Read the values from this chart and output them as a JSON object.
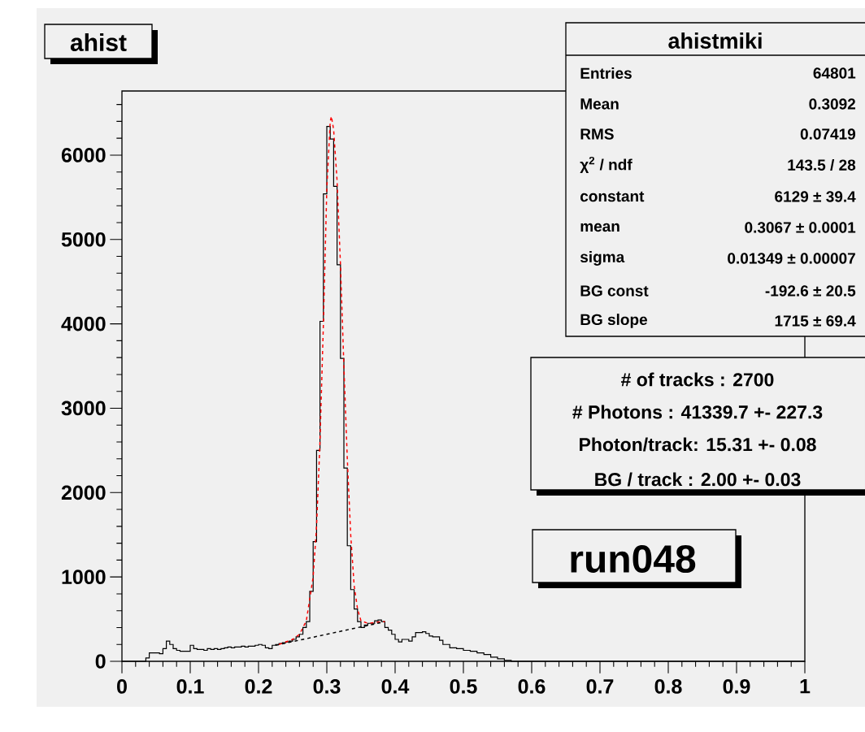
{
  "chart_data": {
    "type": "histogram",
    "title": "ahist",
    "color": "#000000",
    "bins": [
      0,
      0.005,
      0.01,
      0.015,
      0.02,
      0.025,
      0.03,
      0.035,
      0.04,
      0.045,
      0.05,
      0.055,
      0.06,
      0.065,
      0.07,
      0.075,
      0.08,
      0.085,
      0.09,
      0.095,
      0.1,
      0.105,
      0.11,
      0.115,
      0.12,
      0.125,
      0.13,
      0.135,
      0.14,
      0.145,
      0.15,
      0.155,
      0.16,
      0.165,
      0.17,
      0.175,
      0.18,
      0.185,
      0.19,
      0.195,
      0.2,
      0.205,
      0.21,
      0.215,
      0.22,
      0.225,
      0.23,
      0.235,
      0.24,
      0.245,
      0.25,
      0.255,
      0.26,
      0.265,
      0.27,
      0.275,
      0.28,
      0.285,
      0.29,
      0.295,
      0.3,
      0.305,
      0.31,
      0.315,
      0.32,
      0.325,
      0.33,
      0.335,
      0.34,
      0.345,
      0.35,
      0.355,
      0.36,
      0.365,
      0.37,
      0.375,
      0.38,
      0.385,
      0.39,
      0.395,
      0.4,
      0.405,
      0.41,
      0.415,
      0.42,
      0.425,
      0.43,
      0.435,
      0.44,
      0.445,
      0.45,
      0.455,
      0.46,
      0.465,
      0.47,
      0.475,
      0.48,
      0.485,
      0.49,
      0.495,
      0.5,
      0.505,
      0.51,
      0.515,
      0.52,
      0.525,
      0.53,
      0.535,
      0.54,
      0.545,
      0.55,
      0.555,
      0.56,
      0.565,
      0.57,
      0.575,
      0.58,
      0.585,
      0.59,
      0.595,
      0.6,
      0.605,
      0.61,
      0.615,
      0.62,
      0.625,
      0.63,
      0.635,
      0.64,
      0.645,
      0.65,
      0.655,
      0.66,
      0.665,
      0.67,
      0.675,
      0.68,
      0.685,
      0.69,
      0.695,
      0.7,
      0.705,
      0.71,
      0.715,
      0.72,
      0.725,
      0.73,
      0.735,
      0.74,
      0.745,
      0.75,
      0.755,
      0.76,
      0.765,
      0.77,
      0.775,
      0.78,
      0.785,
      0.79,
      0.795,
      0.8,
      0.805,
      0.81,
      0.815,
      0.82,
      0.825,
      0.83,
      0.835,
      0.84,
      0.845,
      0.85,
      0.855,
      0.86,
      0.865,
      0.87,
      0.875,
      0.88,
      0.885,
      0.89,
      0.895,
      0.9,
      0.905,
      0.91,
      0.915,
      0.92,
      0.925,
      0.93,
      0.935,
      0.94,
      0.945,
      0.95,
      0.955,
      0.96,
      0.965,
      0.97,
      0.975,
      0.98,
      0.985,
      0.99,
      0.995,
      1
    ],
    "values": [
      0,
      0,
      0,
      0,
      0,
      0,
      0,
      40,
      100,
      100,
      100,
      90,
      150,
      240,
      200,
      150,
      130,
      120,
      120,
      120,
      190,
      150,
      140,
      140,
      130,
      150,
      140,
      150,
      140,
      150,
      160,
      170,
      160,
      170,
      170,
      180,
      170,
      180,
      180,
      190,
      200,
      190,
      160,
      150,
      190,
      200,
      210,
      220,
      230,
      240,
      260,
      290,
      320,
      400,
      470,
      830,
      1420,
      2500,
      4030,
      5540,
      6340,
      6190,
      5630,
      4700,
      3590,
      2290,
      1370,
      850,
      620,
      470,
      400,
      430,
      450,
      450,
      480,
      490,
      470,
      400,
      370,
      320,
      260,
      230,
      260,
      260,
      240,
      290,
      340,
      340,
      350,
      330,
      300,
      290,
      290,
      250,
      200,
      200,
      160,
      160,
      150,
      150,
      130,
      130,
      120,
      120,
      100,
      100,
      80,
      80,
      50,
      50,
      30,
      30,
      10,
      10,
      0,
      0,
      0,
      0,
      0,
      0,
      0,
      0,
      0,
      0,
      0,
      0,
      0,
      0,
      0,
      0,
      0,
      0,
      0,
      0,
      0,
      0,
      0,
      0,
      0,
      0,
      0,
      0,
      0,
      0,
      0,
      0,
      0,
      0,
      0,
      0,
      0,
      0,
      0,
      0,
      0,
      0,
      0,
      0,
      0,
      0,
      0,
      0,
      0,
      0,
      0,
      0,
      0,
      0,
      0,
      0,
      0,
      0,
      0,
      0,
      0,
      0,
      0,
      0,
      0,
      0,
      0,
      0,
      0,
      0,
      0,
      0,
      0,
      0,
      0,
      0,
      0,
      0,
      0,
      0,
      0,
      0,
      0,
      0,
      0,
      0
    ],
    "series": [
      {
        "type": "line",
        "color": "#ff0000",
        "line_style": "dashed",
        "x": [
          0.23,
          0.25,
          0.26,
          0.27,
          0.28,
          0.285,
          0.29,
          0.295,
          0.3,
          0.305,
          0.3067,
          0.31,
          0.315,
          0.32,
          0.325,
          0.33,
          0.335,
          0.34,
          0.345,
          0.35,
          0.36,
          0.37,
          0.38,
          0.385
        ],
        "values": [
          200,
          260,
          320,
          480,
          1000,
          1600,
          2600,
          4000,
          5600,
          6400,
          6460,
          6300,
          5700,
          4700,
          3500,
          2400,
          1500,
          900,
          620,
          480,
          450,
          460,
          470,
          470
        ]
      },
      {
        "type": "line",
        "color": "#000000",
        "line_style": "dashed",
        "x": [
          0.225,
          0.38
        ],
        "values": [
          190,
          460
        ]
      }
    ],
    "xlim": [
      0,
      1
    ],
    "ylim": [
      0,
      6760
    ],
    "xticks": [
      0,
      {
        "value": 0.02,
        "label": null
      },
      {
        "value": 0.04,
        "label": null
      },
      {
        "value": 0.06,
        "label": null
      },
      {
        "value": 0.08,
        "label": null
      },
      0.1,
      {
        "value": 0.12,
        "label": null
      },
      {
        "value": 0.14,
        "label": null
      },
      {
        "value": 0.16,
        "label": null
      },
      {
        "value": 0.18,
        "label": null
      },
      0.2,
      {
        "value": 0.22,
        "label": null
      },
      {
        "value": 0.24,
        "label": null
      },
      {
        "value": 0.26,
        "label": null
      },
      {
        "value": 0.28,
        "label": null
      },
      0.3,
      {
        "value": 0.32,
        "label": null
      },
      {
        "value": 0.34,
        "label": null
      },
      {
        "value": 0.36,
        "label": null
      },
      {
        "value": 0.38,
        "label": null
      },
      0.4,
      {
        "value": 0.42,
        "label": null
      },
      {
        "value": 0.44,
        "label": null
      },
      {
        "value": 0.46,
        "label": null
      },
      {
        "value": 0.48,
        "label": null
      },
      0.5,
      {
        "value": 0.52,
        "label": null
      },
      {
        "value": 0.54,
        "label": null
      },
      {
        "value": 0.56,
        "label": null
      },
      {
        "value": 0.58,
        "label": null
      },
      0.6,
      {
        "value": 0.62,
        "label": null
      },
      {
        "value": 0.64,
        "label": null
      },
      {
        "value": 0.66,
        "label": null
      },
      {
        "value": 0.68,
        "label": null
      },
      0.7,
      {
        "value": 0.72,
        "label": null
      },
      {
        "value": 0.74,
        "label": null
      },
      {
        "value": 0.76,
        "label": null
      },
      {
        "value": 0.78,
        "label": null
      },
      0.8,
      {
        "value": 0.82,
        "label": null
      },
      {
        "value": 0.84,
        "label": null
      },
      {
        "value": 0.86,
        "label": null
      },
      {
        "value": 0.88,
        "label": null
      },
      0.9,
      {
        "value": 0.92,
        "label": null
      },
      {
        "value": 0.94,
        "label": null
      },
      {
        "value": 0.96,
        "label": null
      },
      {
        "value": 0.98,
        "label": null
      },
      1
    ],
    "yticks": [
      0,
      {
        "value": 200,
        "label": null
      },
      {
        "value": 400,
        "label": null
      },
      {
        "value": 600,
        "label": null
      },
      {
        "value": 800,
        "label": null
      },
      1000,
      {
        "value": 1200,
        "label": null
      },
      {
        "value": 1400,
        "label": null
      },
      {
        "value": 1600,
        "label": null
      },
      {
        "value": 1800,
        "label": null
      },
      2000,
      {
        "value": 2200,
        "label": null
      },
      {
        "value": 2400,
        "label": null
      },
      {
        "value": 2600,
        "label": null
      },
      {
        "value": 2800,
        "label": null
      },
      3000,
      {
        "value": 3200,
        "label": null
      },
      {
        "value": 3400,
        "label": null
      },
      {
        "value": 3600,
        "label": null
      },
      {
        "value": 3800,
        "label": null
      },
      4000,
      {
        "value": 4200,
        "label": null
      },
      {
        "value": 4400,
        "label": null
      },
      {
        "value": 4600,
        "label": null
      },
      {
        "value": 4800,
        "label": null
      },
      5000,
      {
        "value": 5200,
        "label": null
      },
      {
        "value": 5400,
        "label": null
      },
      {
        "value": 5600,
        "label": null
      },
      {
        "value": 5800,
        "label": null
      },
      6000,
      {
        "value": 6200,
        "label": null
      },
      {
        "value": 6400,
        "label": null
      },
      {
        "value": 6600,
        "label": null
      }
    ],
    "annotations": [
      "ahistmiki",
      "Entries",
      "64801",
      "Mean",
      "0.3092",
      "RMS",
      "0.07419",
      "χ$^{2}$ / ndf",
      "143.5 / 28",
      "constant",
      "6129 ± 39.4",
      "mean",
      "0.3067 ± 0.0001",
      "sigma",
      "0.01349 ± 0.00007",
      "BG const",
      "-192.6 ± 20.5",
      "BG slope",
      "1715 ± 69.4",
      "# of tracks : 2700",
      "# Photons : 41339.7 +- 227.3",
      "Photon/track: 15.31 +- 0.08",
      "BG / track  : 2.00 +- 0.03",
      "run048"
    ]
  }
}
